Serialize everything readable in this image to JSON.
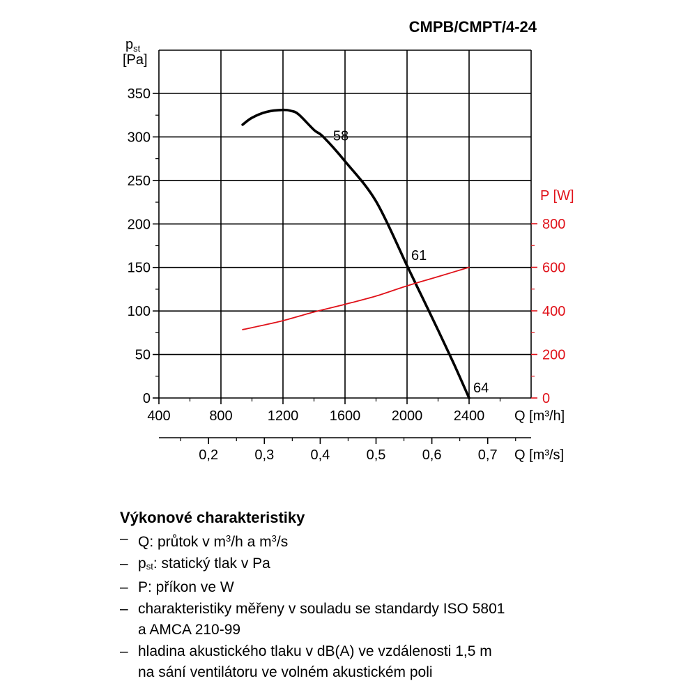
{
  "chart_data": {
    "type": "line",
    "title": "CMPB/CMPT/4-24",
    "ylabel_main": "p",
    "ylabel_sub": "st",
    "ylabel_unit": "[Pa]",
    "ylabel_right": "P [W]",
    "xlabel_bottom_1": "Q [m³/h]",
    "xlabel_bottom_2": "Q [m³/s]",
    "xlim": [
      400,
      2800
    ],
    "ylim": [
      0,
      350
    ],
    "ylim_right": [
      0,
      1120
    ],
    "grid": true,
    "x_ticks": [
      "400",
      "800",
      "1200",
      "1600",
      "2000",
      "2400"
    ],
    "x_tick_values": [
      400,
      800,
      1200,
      1600,
      2000,
      2400
    ],
    "y_ticks": [
      "0",
      "50",
      "100",
      "150",
      "200",
      "250",
      "300",
      "350"
    ],
    "y_tick_values": [
      0,
      50,
      100,
      150,
      200,
      250,
      300,
      350
    ],
    "y2_ticks": [
      "0",
      "200",
      "400",
      "600",
      "800"
    ],
    "y2_tick_values": [
      0,
      200,
      400,
      600,
      800
    ],
    "x2_ticks": [
      "0,2",
      "0,3",
      "0,4",
      "0,5",
      "0,6",
      "0,7"
    ],
    "x2_tick_values": [
      0.2,
      0.3,
      0.4,
      0.5,
      0.6,
      0.7
    ],
    "series": [
      {
        "axis": "left",
        "color": "#000000",
        "x": [
          940,
          1000,
          1100,
          1200,
          1250,
          1300,
          1400,
          1460,
          1600,
          1800,
          2000,
          2100,
          2200,
          2300,
          2400
        ],
        "y": [
          314,
          322,
          329,
          331,
          330,
          326,
          308,
          300,
          272,
          226,
          152,
          115,
          78,
          40,
          0
        ]
      },
      {
        "axis": "right",
        "color": "#e0121a",
        "x": [
          940,
          1000,
          1200,
          1400,
          1600,
          1800,
          2000,
          2200,
          2400
        ],
        "y": [
          314,
          323,
          355,
          395,
          430,
          468,
          515,
          557,
          600
        ]
      }
    ],
    "annotations": [
      {
        "text": "58",
        "x": 1460,
        "y": 300
      },
      {
        "text": "61",
        "x": 2000,
        "y": 152
      },
      {
        "text": "64",
        "x": 2400,
        "y": 0
      }
    ]
  },
  "notes": {
    "heading": "Výkonové charakteristiky",
    "dash": "–",
    "item1_pre": "Q: průtok v m",
    "item1_sup": "3",
    "item1_mid": "/h a m",
    "item1_sup2": "3",
    "item1_post": "/s",
    "item2_pre": "p",
    "item2_sub": "st",
    "item2_post": ": statický tlak v Pa",
    "item3": "P: příkon ve W",
    "item4_line1": "charakteristiky měřeny v souladu se standardy ISO 5801",
    "item4_line2": "a AMCA 210-99",
    "item5_line1": "hladina akustického tlaku v dB(A) ve vzdálenosti 1,5 m",
    "item5_line2": "na sání ventilátoru ve volném akustickém poli"
  }
}
